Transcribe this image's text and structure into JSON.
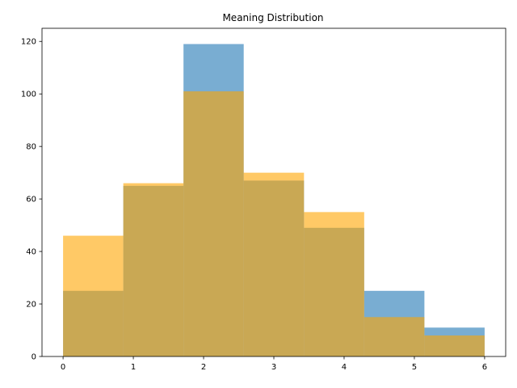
{
  "chart_data": {
    "type": "bar",
    "title": "Meaning Distribution",
    "xlabel": "",
    "ylabel": "",
    "xlim": [
      -0.3,
      6.3
    ],
    "ylim": [
      0,
      125
    ],
    "xticks": [
      0,
      1,
      2,
      3,
      4,
      5,
      6
    ],
    "yticks": [
      0,
      20,
      40,
      60,
      80,
      100,
      120
    ],
    "bin_edges": [
      0,
      0.857,
      1.714,
      2.571,
      3.429,
      4.286,
      5.143,
      6
    ],
    "grid": false,
    "legend": "none",
    "series": [
      {
        "values": [
          25,
          65,
          119,
          67,
          49,
          25,
          11
        ],
        "color": "#1f77b4",
        "opacity": 0.6
      },
      {
        "values": [
          46,
          66,
          101,
          70,
          55,
          15,
          8
        ],
        "color": "#ffa500",
        "opacity": 0.6
      }
    ]
  }
}
